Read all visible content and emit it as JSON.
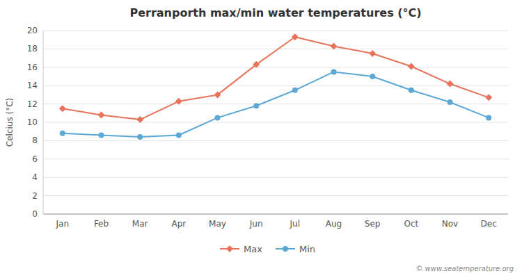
{
  "chart_data": {
    "type": "line",
    "title": "Perranporth max/min water temperatures (°C)",
    "y_label": "Celcius (°C)",
    "categories": [
      "Jan",
      "Feb",
      "Mar",
      "Apr",
      "May",
      "Jun",
      "Jul",
      "Aug",
      "Sep",
      "Oct",
      "Nov",
      "Dec"
    ],
    "series": [
      {
        "name": "Max",
        "color": "#e8735a",
        "marker": "diamond",
        "values": [
          11.5,
          10.8,
          10.3,
          12.3,
          13.0,
          16.3,
          19.3,
          18.3,
          17.5,
          16.1,
          14.2,
          12.7
        ]
      },
      {
        "name": "Min",
        "color": "#5ba8d4",
        "marker": "circle",
        "values": [
          8.8,
          8.6,
          8.4,
          8.6,
          10.5,
          11.8,
          13.5,
          15.5,
          15.0,
          13.5,
          12.2,
          10.5
        ]
      }
    ],
    "ylim": [
      0,
      20
    ],
    "yticks": [
      0,
      2,
      4,
      6,
      8,
      10,
      12,
      14,
      16,
      18,
      20
    ],
    "grid": true,
    "legend": "bottom",
    "annotations": [
      "© www.seatemperature.org"
    ]
  }
}
